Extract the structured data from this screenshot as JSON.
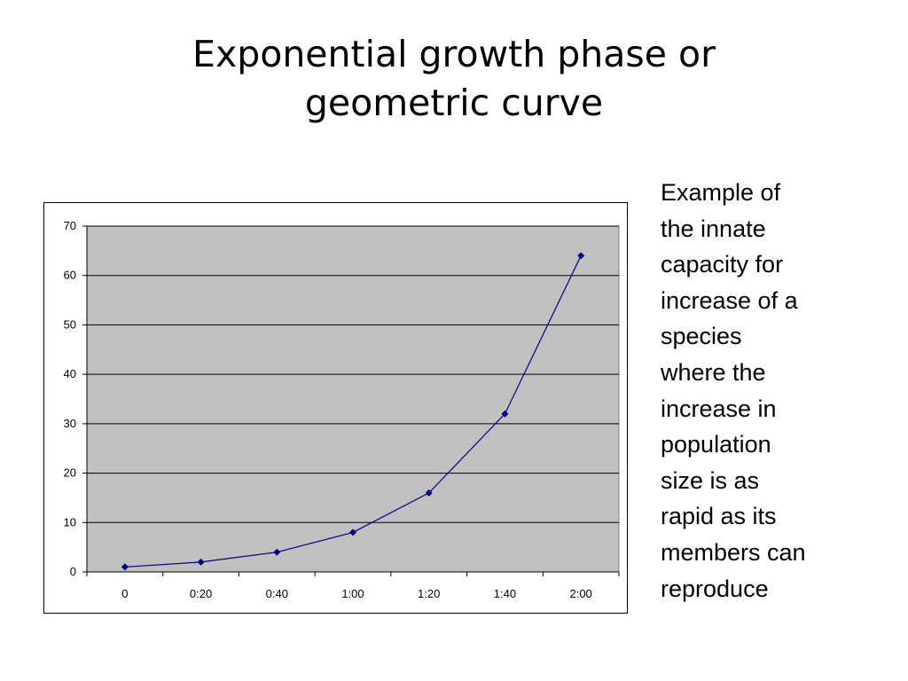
{
  "slide": {
    "title_line1": "Exponential growth phase or",
    "title_line2": "geometric curve",
    "side_text": "Example of\nthe innate\ncapacity for\nincrease of  a\nspecies\nwhere the\nincrease in\npopulation\nsize is as\nrapid as its\nmembers can\nreproduce"
  },
  "colors": {
    "plot_background": "#c0c0c0",
    "series_line": "#000080",
    "gridline": "#000000"
  },
  "chart_data": {
    "type": "line",
    "categories": [
      "0",
      "0:20",
      "0:40",
      "1:00",
      "1:20",
      "1:40",
      "2:00"
    ],
    "series": [
      {
        "values": [
          1,
          2,
          4,
          8,
          16,
          32,
          64
        ]
      }
    ],
    "ylim": [
      0,
      70
    ],
    "yticks": [
      "0",
      "10",
      "20",
      "30",
      "40",
      "50",
      "60",
      "70"
    ],
    "grid": true,
    "legend": "none",
    "marker": "diamond"
  }
}
